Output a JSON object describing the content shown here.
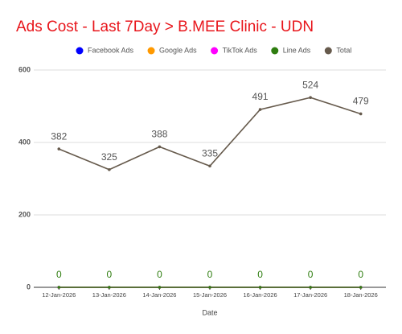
{
  "chart_data": {
    "type": "line",
    "title": "Ads Cost - Last 7Day > B.MEE Clinic - UDN",
    "x_label": "Date",
    "categories": [
      "12-Jan-2026",
      "13-Jan-2026",
      "14-Jan-2026",
      "15-Jan-2026",
      "16-Jan-2026",
      "17-Jan-2026",
      "18-Jan-2026"
    ],
    "series": [
      {
        "name": "Facebook Ads",
        "color": "#0000ff",
        "values": [
          0,
          0,
          0,
          0,
          0,
          0,
          0
        ],
        "data_labels": false
      },
      {
        "name": "Google Ads",
        "color": "#ff9900",
        "values": [
          0,
          0,
          0,
          0,
          0,
          0,
          0
        ],
        "data_labels": false
      },
      {
        "name": "TikTok Ads",
        "color": "#ff00ff",
        "values": [
          0,
          0,
          0,
          0,
          0,
          0,
          0
        ],
        "data_labels": false
      },
      {
        "name": "Line Ads",
        "color": "#2e7d0f",
        "values": [
          0,
          0,
          0,
          0,
          0,
          0,
          0
        ],
        "data_labels": true
      },
      {
        "name": "Total",
        "color": "#665a4c",
        "values": [
          382,
          325,
          388,
          335,
          491,
          524,
          479
        ],
        "data_labels": true
      }
    ],
    "ylim": [
      0,
      600
    ],
    "yticks": [
      0,
      200,
      400,
      600
    ],
    "grid": true,
    "legend": "top"
  }
}
